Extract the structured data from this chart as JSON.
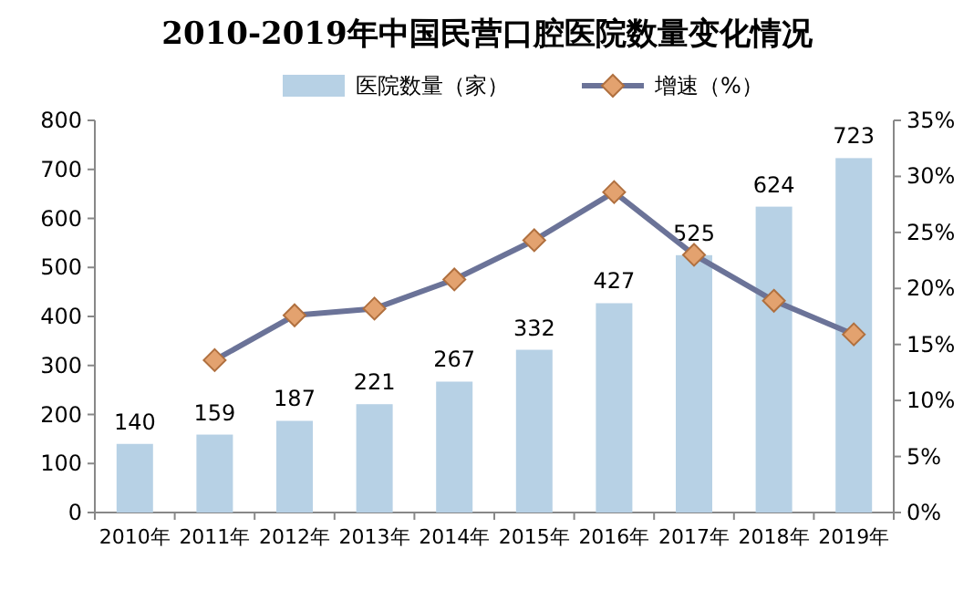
{
  "chart_data": {
    "type": "bar",
    "title": "2010-2019年中国民营口腔医院数量变化情况",
    "categories": [
      "2010年",
      "2011年",
      "2012年",
      "2013年",
      "2014年",
      "2015年",
      "2016年",
      "2017年",
      "2018年",
      "2019年"
    ],
    "series": [
      {
        "name": "医院数量（家）",
        "color": "#b7d1e5",
        "values": [
          140,
          159,
          187,
          221,
          267,
          332,
          427,
          525,
          624,
          723
        ],
        "value_labels": [
          "140",
          "159",
          "187",
          "221",
          "267",
          "332",
          "427",
          "525",
          "624",
          "723"
        ]
      },
      {
        "name": "增速（%）",
        "type": "line",
        "axis": "y2",
        "color": "#6b7398",
        "marker": "diamond",
        "values": [
          null,
          13.6,
          17.6,
          18.2,
          20.8,
          24.3,
          28.6,
          23.0,
          18.9,
          15.9
        ]
      }
    ],
    "ylim": [
      0,
      800
    ],
    "yticks": [
      0,
      100,
      200,
      300,
      400,
      500,
      600,
      700,
      800
    ],
    "y2lim": [
      0,
      35
    ],
    "y2ticks": [
      {
        "value": 0,
        "label": "0%"
      },
      {
        "value": 5,
        "label": "5%"
      },
      {
        "value": 10,
        "label": "10%"
      },
      {
        "value": 15,
        "label": "15%"
      },
      {
        "value": 20,
        "label": "20%"
      },
      {
        "value": 25,
        "label": "25%"
      },
      {
        "value": 30,
        "label": "30%"
      },
      {
        "value": 35,
        "label": "35%"
      }
    ],
    "legend": "top",
    "grid": false
  }
}
